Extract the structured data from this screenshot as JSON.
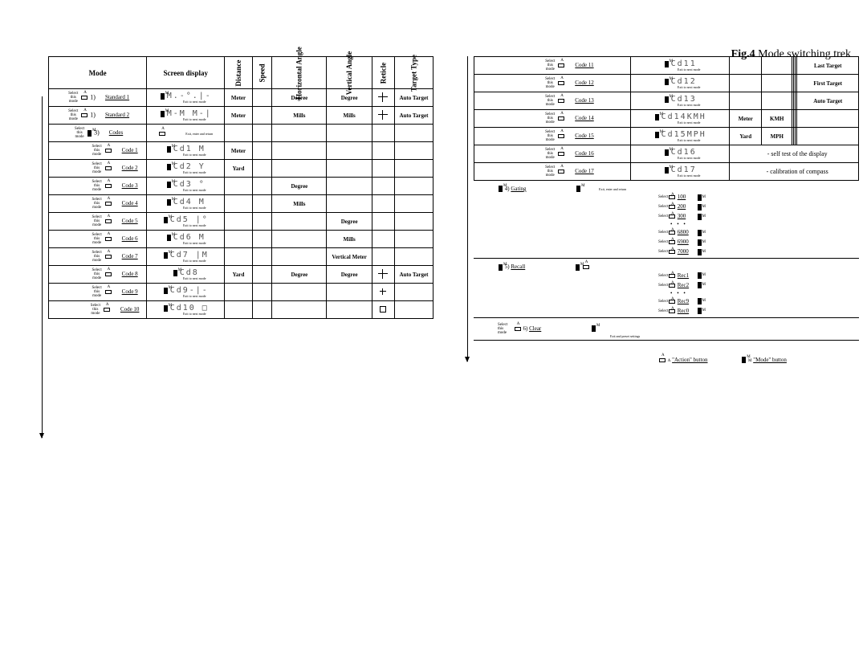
{
  "figure": {
    "label": "Fig.4",
    "title": "Mode switching trek"
  },
  "headers": {
    "mode": "Mode",
    "screen": "Screen display",
    "distance": "Distance",
    "speed": "Speed",
    "hangle": "Horizontal Angle",
    "vangle": "Vertical Angle",
    "reticle": "Reticle",
    "ttype": "Target Type"
  },
  "units": {
    "meter": "Meter",
    "yard": "Yard",
    "degree": "Degree",
    "mills": "Mills",
    "vmeter": "Vertical Meter",
    "kmh": "KMH",
    "mph": "MPH"
  },
  "targets": {
    "auto": "Auto Target",
    "last": "Last Target",
    "first": "First Target"
  },
  "notes": {
    "selftest": "- self test of the display",
    "calib": "- calibration of compass",
    "select": "Select this mode",
    "exit": "Exit to next mode",
    "exit2": "Exit, enter and return",
    "clear": "Exit and preset settings"
  },
  "left_rows": [
    {
      "id": "std1",
      "num": "1)",
      "label": "Standard 1",
      "seg": "M.-°.|-",
      "dist": "Meter",
      "hang": "Degree",
      "vang": "Degree",
      "ret": "cross",
      "tt": "Auto Target"
    },
    {
      "id": "std2",
      "num": "1)",
      "label": "Standard 2",
      "seg": "M-M M-|",
      "dist": "Meter",
      "hang": "Mills",
      "vang": "Mills",
      "ret": "cross",
      "tt": "Auto Target"
    },
    {
      "id": "codes",
      "num": "3)",
      "label": "Codes",
      "seg": "",
      "group": true
    },
    {
      "id": "c1",
      "label": "Code 1",
      "seg": "Cd1 M",
      "dist": "Meter",
      "indent": true
    },
    {
      "id": "c2",
      "label": "Code 2",
      "seg": "Cd2 Y",
      "dist": "Yard",
      "indent": true
    },
    {
      "id": "c3",
      "label": "Code 3",
      "seg": "Cd3 °",
      "hang": "Degree",
      "indent": true
    },
    {
      "id": "c4",
      "label": "Code 4",
      "seg": "Cd4 M",
      "hang": "Mills",
      "indent": true
    },
    {
      "id": "c5",
      "label": "Code 5",
      "seg": "Cd5 |°",
      "vang": "Degree",
      "indent": true
    },
    {
      "id": "c6",
      "label": "Code 6",
      "seg": "Cd6 M",
      "vang": "Mills",
      "indent": true
    },
    {
      "id": "c7",
      "label": "Code 7",
      "seg": "Cd7 |M",
      "vang": "Vertical Meter",
      "indent": true
    },
    {
      "id": "c8",
      "label": "Code 8",
      "seg": "Cd8",
      "dist": "Yard",
      "hang": "Degree",
      "vang": "Degree",
      "ret": "cross",
      "tt": "Auto Target",
      "indent": true
    },
    {
      "id": "c9",
      "label": "Code 9",
      "seg": "Cd9-|-",
      "ret": "small",
      "indent": true
    },
    {
      "id": "c10",
      "label": "Code 10",
      "seg": "Cd10 □",
      "ret": "box",
      "indent": true
    }
  ],
  "right_rows": [
    {
      "id": "c11",
      "label": "Code 11",
      "seg": "Cd11",
      "tt": "Last Target",
      "indent": true
    },
    {
      "id": "c12",
      "label": "Code 12",
      "seg": "Cd12",
      "tt": "First Target",
      "indent": true
    },
    {
      "id": "c13",
      "label": "Code 13",
      "seg": "Cd13",
      "tt": "Auto Target",
      "indent": true
    },
    {
      "id": "c14",
      "label": "Code 14",
      "seg": "Cd14KMH",
      "dist": "Meter",
      "speed": "KMH",
      "indent": true
    },
    {
      "id": "c15",
      "label": "Code 15",
      "seg": "Cd15MPH",
      "dist": "Yard",
      "speed": "MPH",
      "indent": true
    },
    {
      "id": "c16",
      "label": "Code 16",
      "seg": "Cd16",
      "note": "- self test of the display",
      "indent": true
    },
    {
      "id": "c17",
      "label": "Code 17",
      "seg": "Cd17",
      "note": "- calibration of compass",
      "indent": true
    }
  ],
  "gating": {
    "num": "4)",
    "label": "Gating",
    "items_top": [
      "100",
      "200",
      "300"
    ],
    "items_bot": [
      "6800",
      "6900",
      "7000"
    ]
  },
  "recall": {
    "num": "5)",
    "label": "Recall",
    "items_top": [
      "Rec1",
      "Rec2"
    ],
    "items_bot": [
      "Rec9",
      "Rec0"
    ]
  },
  "clear": {
    "num": "6)",
    "label": "Clear"
  },
  "legend": {
    "action": "\"Action\" button",
    "mode": "\"Mode\" button"
  }
}
